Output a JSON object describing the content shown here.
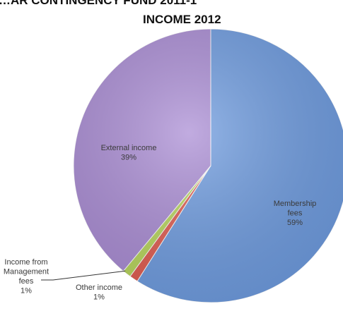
{
  "chart_data": {
    "type": "pie",
    "title_lines": [
      "…AR CONTINGENCY FUND 2011-1",
      "INCOME 2012"
    ],
    "series": [
      {
        "slices": [
          {
            "label": "Membership fees",
            "label_lines": [
              "Membership",
              "fees",
              "59%"
            ],
            "value": 59,
            "display": "59%",
            "color": "#6d9be0"
          },
          {
            "label": "Other income",
            "label_lines": [
              "Other income",
              "1%"
            ],
            "value": 1,
            "display": "1%",
            "color": "#e05a4e"
          },
          {
            "label": "Income from Management fees",
            "label_lines": [
              "Income from",
              "Management",
              "fees",
              "1%"
            ],
            "value": 1,
            "display": "1%",
            "color": "#b7d65a"
          },
          {
            "label": "External income",
            "label_lines": [
              "External income",
              "39%"
            ],
            "value": 39,
            "display": "39%",
            "color": "#a98bd4"
          }
        ]
      }
    ],
    "legend": "none"
  }
}
